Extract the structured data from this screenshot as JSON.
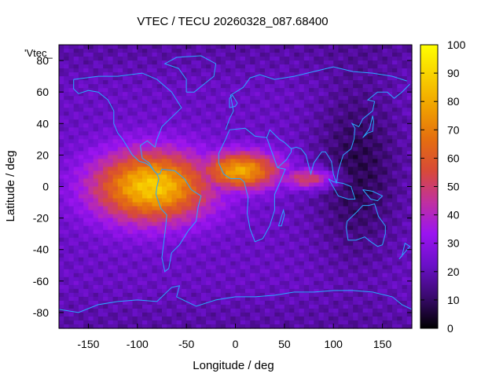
{
  "chart_data": {
    "type": "heatmap",
    "title": "VTEC / TECU 20260328_087.68400",
    "xlabel": "Longitude / deg",
    "ylabel": "Latitude / deg",
    "overlay_label": "'Vtec_",
    "xlim": [
      -180,
      180
    ],
    "ylim": [
      -90,
      90
    ],
    "x_ticks": [
      -150,
      -100,
      -50,
      0,
      50,
      100,
      150
    ],
    "y_ticks": [
      -80,
      -60,
      -40,
      -20,
      0,
      20,
      40,
      60,
      80
    ],
    "colorbar": {
      "range": [
        0,
        100
      ],
      "ticks": [
        0,
        10,
        20,
        30,
        40,
        50,
        60,
        70,
        80,
        90,
        100
      ],
      "palette": [
        "#000000",
        "#3a0a6e",
        "#6a10c8",
        "#9a14f0",
        "#c030a0",
        "#d84a38",
        "#e46e10",
        "#f0a000",
        "#f8d000",
        "#ffff00"
      ]
    },
    "grid_resolution_deg": {
      "lon": 5,
      "lat": 2.5
    },
    "regions": [
      {
        "name": "background",
        "value": 22
      },
      {
        "name": "equatorial-anomaly-americas",
        "lon_center": -85,
        "lat_center": 0,
        "lon_halfwidth": 75,
        "lat_halfwidth": 28,
        "peak_value": 88
      },
      {
        "name": "equatorial-anomaly-atlantic-africa",
        "lon_center": 5,
        "lat_center": 10,
        "lon_halfwidth": 50,
        "lat_halfwidth": 15,
        "peak_value": 80
      },
      {
        "name": "equatorial-band-indian-ocean",
        "lon_center": 75,
        "lat_center": 5,
        "lon_halfwidth": 35,
        "lat_halfwidth": 8,
        "peak_value": 55
      },
      {
        "name": "night-side-asia-pacific",
        "lon_center": 125,
        "lat_center": 10,
        "lon_halfwidth": 55,
        "lat_halfwidth": 70,
        "min_value": 8
      }
    ]
  }
}
